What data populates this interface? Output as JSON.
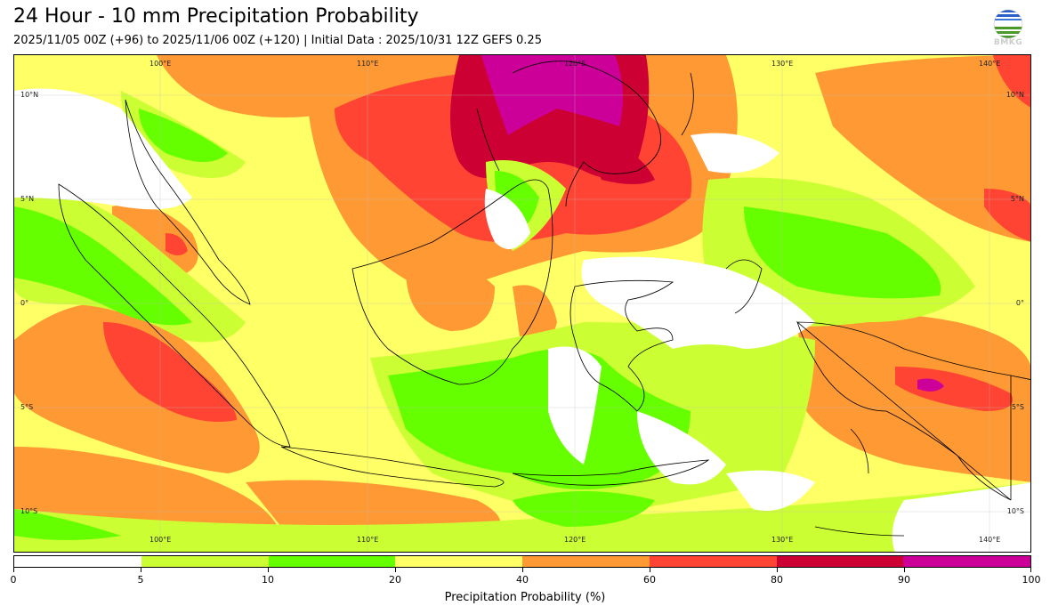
{
  "header": {
    "title": "24 Hour - 10 mm Precipitation Probability",
    "subtitle": "2025/11/05 00Z (+96) to 2025/11/06 00Z (+120) | Initial Data : 2025/10/31 12Z GEFS 0.25",
    "logo_text": "BMKG"
  },
  "map": {
    "lon_labels": [
      "100°E",
      "110°E",
      "120°E",
      "130°E",
      "140°E"
    ],
    "lat_labels": [
      "10°N",
      "5°N",
      "0°",
      "5°S",
      "10°S"
    ],
    "lon_range": [
      93,
      142
    ],
    "lat_range": [
      -12,
      12
    ]
  },
  "colorbar": {
    "label": "Precipitation Probability (%)",
    "ticks": [
      "0",
      "5",
      "10",
      "20",
      "40",
      "60",
      "80",
      "90",
      "100"
    ],
    "colors": [
      "#ffffff",
      "#ccff33",
      "#66ff00",
      "#ffff66",
      "#ff9933",
      "#ff4433",
      "#cc0033",
      "#cc0099"
    ]
  }
}
